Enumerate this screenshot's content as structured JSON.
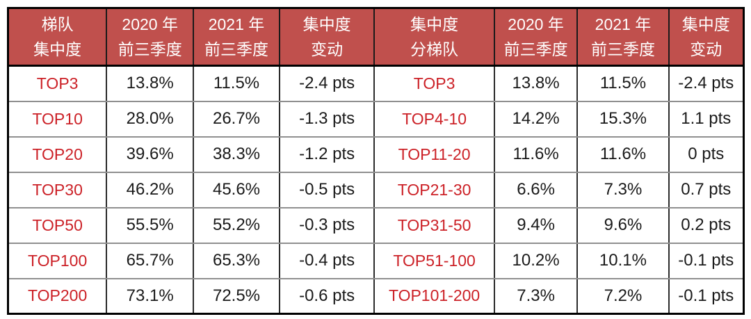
{
  "chart_data": {
    "type": "table",
    "title": "",
    "columns": [
      "梯队 集中度",
      "2020 年 前三季度",
      "2021 年 前三季度",
      "集中度 变动",
      "集中度 分梯队",
      "2020 年 前三季度",
      "2021 年 前三季度",
      "集中度 变动"
    ],
    "rows": [
      [
        "TOP3",
        "13.8%",
        "11.5%",
        "-2.4 pts",
        "TOP3",
        "13.8%",
        "11.5%",
        "-2.4 pts"
      ],
      [
        "TOP10",
        "28.0%",
        "26.7%",
        "-1.3 pts",
        "TOP4-10",
        "14.2%",
        "15.3%",
        "1.1 pts"
      ],
      [
        "TOP20",
        "39.6%",
        "38.3%",
        "-1.2 pts",
        "TOP11-20",
        "11.6%",
        "11.6%",
        "0 pts"
      ],
      [
        "TOP30",
        "46.2%",
        "45.6%",
        "-0.5 pts",
        "TOP21-30",
        "6.6%",
        "7.3%",
        "0.7 pts"
      ],
      [
        "TOP50",
        "55.5%",
        "55.2%",
        "-0.3 pts",
        "TOP31-50",
        "9.4%",
        "9.6%",
        "0.2 pts"
      ],
      [
        "TOP100",
        "65.7%",
        "65.3%",
        "-0.4 pts",
        "TOP51-100",
        "10.2%",
        "10.1%",
        "-0.1 pts"
      ],
      [
        "TOP200",
        "73.1%",
        "72.5%",
        "-0.6 pts",
        "TOP101-200",
        "7.3%",
        "7.2%",
        "-0.1 pts"
      ]
    ],
    "layout_hints": {
      "header_background": "#C0504D",
      "tier_columns_text_color": "#CC2127",
      "grid": true
    }
  },
  "table": {
    "headers": [
      {
        "line1": "梯队",
        "line2": "集中度"
      },
      {
        "line1": "2020 年",
        "line2": "前三季度"
      },
      {
        "line1": "2021 年",
        "line2": "前三季度"
      },
      {
        "line1": "集中度",
        "line2": "变动"
      },
      {
        "line1": "集中度",
        "line2": "分梯队"
      },
      {
        "line1": "2020 年",
        "line2": "前三季度"
      },
      {
        "line1": "2021 年",
        "line2": "前三季度"
      },
      {
        "line1": "集中度",
        "line2": "变动"
      }
    ],
    "rows": [
      {
        "tier": "TOP3",
        "y2020": "13.8%",
        "y2021": "11.5%",
        "change": "-2.4 pts",
        "tier_b": "TOP3",
        "y2020_b": "13.8%",
        "y2021_b": "11.5%",
        "change_b": "-2.4 pts"
      },
      {
        "tier": "TOP10",
        "y2020": "28.0%",
        "y2021": "26.7%",
        "change": "-1.3 pts",
        "tier_b": "TOP4-10",
        "y2020_b": "14.2%",
        "y2021_b": "15.3%",
        "change_b": "1.1 pts"
      },
      {
        "tier": "TOP20",
        "y2020": "39.6%",
        "y2021": "38.3%",
        "change": "-1.2 pts",
        "tier_b": "TOP11-20",
        "y2020_b": "11.6%",
        "y2021_b": "11.6%",
        "change_b": "0 pts"
      },
      {
        "tier": "TOP30",
        "y2020": "46.2%",
        "y2021": "45.6%",
        "change": "-0.5 pts",
        "tier_b": "TOP21-30",
        "y2020_b": "6.6%",
        "y2021_b": "7.3%",
        "change_b": "0.7 pts"
      },
      {
        "tier": "TOP50",
        "y2020": "55.5%",
        "y2021": "55.2%",
        "change": "-0.3 pts",
        "tier_b": "TOP31-50",
        "y2020_b": "9.4%",
        "y2021_b": "9.6%",
        "change_b": "0.2 pts"
      },
      {
        "tier": "TOP100",
        "y2020": "65.7%",
        "y2021": "65.3%",
        "change": "-0.4 pts",
        "tier_b": "TOP51-100",
        "y2020_b": "10.2%",
        "y2021_b": "10.1%",
        "change_b": "-0.1 pts"
      },
      {
        "tier": "TOP200",
        "y2020": "73.1%",
        "y2021": "72.5%",
        "change": "-0.6 pts",
        "tier_b": "TOP101-200",
        "y2020_b": "7.3%",
        "y2021_b": "7.2%",
        "change_b": "-0.1 pts"
      }
    ]
  },
  "colors": {
    "header_background": "#C0504D",
    "header_text": "#FFFFFF",
    "tier_text": "#CC2127",
    "body_text": "#1A1A1A",
    "outer_border": "#000000",
    "inner_horizontal_border": "#8F8F8F",
    "inner_vertical_border": "#2B2B2B"
  }
}
